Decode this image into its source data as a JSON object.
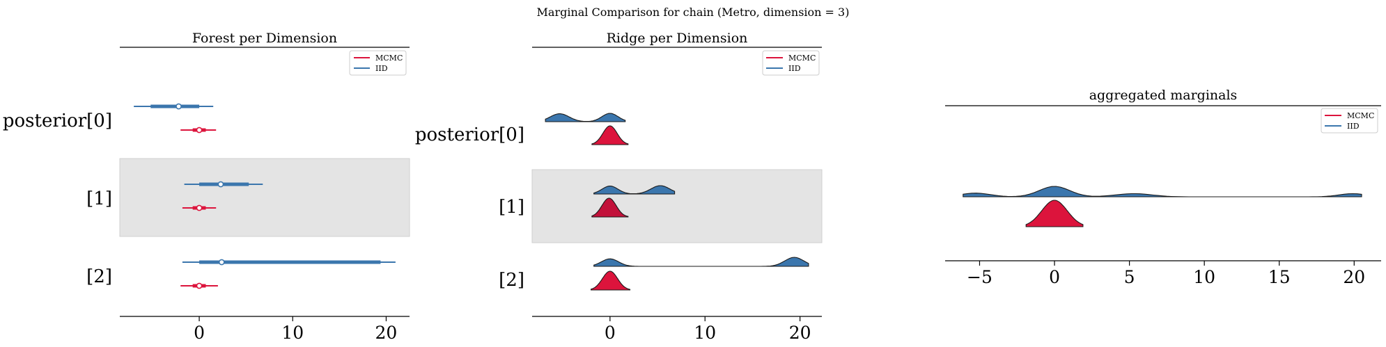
{
  "figure": {
    "suptitle": "Marginal Comparison for chain (Metro, dimension = 3)"
  },
  "colors": {
    "mcmc": "#dc143c",
    "mcmc_dark": "#c2113a",
    "iid": "#3b76ad",
    "row_band": "#e4e4e4",
    "axis": "#000000"
  },
  "legend": {
    "entries": [
      "MCMC",
      "IID"
    ]
  },
  "chart_data": [
    {
      "type": "forest",
      "title": "Forest per Dimension",
      "row_labels": [
        "posterior[0]",
        "[1]",
        "[2]"
      ],
      "xlim": [
        -8.5,
        22.5
      ],
      "xticks": [
        0,
        10,
        20
      ],
      "xtick_labels": [
        "0",
        "10",
        "20"
      ],
      "shaded_rows": [
        1
      ],
      "series": [
        {
          "name": "IID",
          "intervals": [
            {
              "row": 0,
              "hdi_low": -7,
              "hdi_high": 1.5,
              "iqr_low": -5.2,
              "iqr_high": 0,
              "point": -2.2
            },
            {
              "row": 1,
              "hdi_low": -1.6,
              "hdi_high": 6.8,
              "iqr_low": 0,
              "iqr_high": 5.3,
              "point": 2.3
            },
            {
              "row": 2,
              "hdi_low": -1.8,
              "hdi_high": 21,
              "iqr_low": 0,
              "iqr_high": 19.4,
              "point": 2.4
            }
          ]
        },
        {
          "name": "MCMC",
          "intervals": [
            {
              "row": 0,
              "hdi_low": -2,
              "hdi_high": 1.8,
              "iqr_low": -0.7,
              "iqr_high": 0.7,
              "point": 0
            },
            {
              "row": 1,
              "hdi_low": -1.8,
              "hdi_high": 1.8,
              "iqr_low": -0.7,
              "iqr_high": 0.7,
              "point": 0
            },
            {
              "row": 2,
              "hdi_low": -2,
              "hdi_high": 2,
              "iqr_low": -0.7,
              "iqr_high": 0.7,
              "point": 0
            }
          ]
        }
      ]
    },
    {
      "type": "ridge",
      "title": "Ridge per Dimension",
      "row_labels": [
        "posterior[0]",
        "[1]",
        "[2]"
      ],
      "xlim": [
        -8.2,
        22.3
      ],
      "xticks": [
        0,
        10,
        20
      ],
      "xtick_labels": [
        "0",
        "10",
        "20"
      ],
      "shaded_rows": [
        1
      ],
      "series": [
        {
          "name": "IID",
          "densities": [
            {
              "row": 0,
              "range": [
                -6.8,
                1.6
              ],
              "modes": [
                {
                  "mu": -5.3,
                  "sd": 1.0,
                  "w": 1.0
                },
                {
                  "mu": 0.0,
                  "sd": 0.85,
                  "w": 1.05
                }
              ]
            },
            {
              "row": 1,
              "range": [
                -1.7,
                6.8
              ],
              "modes": [
                {
                  "mu": 0.0,
                  "sd": 0.85,
                  "w": 1.0
                },
                {
                  "mu": 5.3,
                  "sd": 1.0,
                  "w": 1.05
                }
              ]
            },
            {
              "row": 2,
              "range": [
                -1.7,
                20.9
              ],
              "modes": [
                {
                  "mu": 0.0,
                  "sd": 0.9,
                  "w": 1.0
                },
                {
                  "mu": 19.4,
                  "sd": 1.0,
                  "w": 1.2
                }
              ]
            }
          ]
        },
        {
          "name": "MCMC",
          "densities": [
            {
              "row": 0,
              "range": [
                -1.9,
                1.9
              ],
              "modes": [
                {
                  "mu": 0.0,
                  "sd": 0.75,
                  "w": 1.0
                }
              ]
            },
            {
              "row": 1,
              "range": [
                -1.9,
                1.9
              ],
              "modes": [
                {
                  "mu": -0.1,
                  "sd": 0.75,
                  "w": 1.0
                }
              ]
            },
            {
              "row": 2,
              "range": [
                -2.0,
                2.1
              ],
              "modes": [
                {
                  "mu": 0.0,
                  "sd": 0.8,
                  "w": 1.0
                }
              ]
            }
          ]
        }
      ]
    },
    {
      "type": "area",
      "title": "aggregated marginals",
      "xlim": [
        -7.3,
        21.8
      ],
      "xticks": [
        -5,
        0,
        5,
        10,
        15,
        20
      ],
      "xtick_labels": [
        "−5",
        "0",
        "5",
        "10",
        "15",
        "20"
      ],
      "series": [
        {
          "name": "IID",
          "range": [
            -6.1,
            20.5
          ],
          "modes": [
            {
              "mu": -5.3,
              "sd": 1.0,
              "w": 0.35
            },
            {
              "mu": 0.0,
              "sd": 1.0,
              "w": 1.0
            },
            {
              "mu": 5.3,
              "sd": 1.2,
              "w": 0.3
            },
            {
              "mu": 19.9,
              "sd": 0.9,
              "w": 0.3
            }
          ]
        },
        {
          "name": "MCMC",
          "range": [
            -1.9,
            1.9
          ],
          "modes": [
            {
              "mu": 0.0,
              "sd": 0.85,
              "w": 1.0
            }
          ]
        }
      ]
    }
  ]
}
